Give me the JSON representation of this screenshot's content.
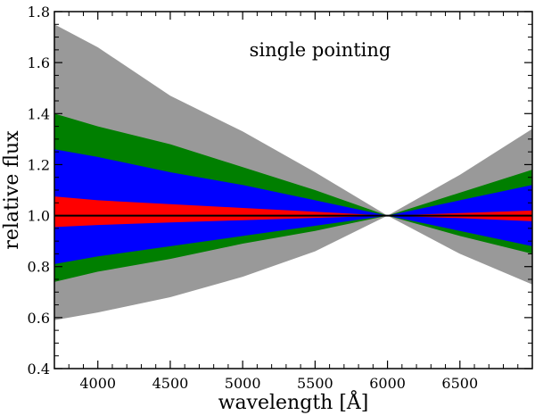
{
  "chart_data": {
    "type": "area",
    "title": "",
    "annotation": "single pointing",
    "xlabel": "wavelength [Å]",
    "ylabel": "relative flux",
    "xlim": [
      3700,
      7000
    ],
    "ylim": [
      0.4,
      1.8
    ],
    "x_ticks": [
      {
        "value": 4000,
        "label": "4000"
      },
      {
        "value": 4500,
        "label": "4500"
      },
      {
        "value": 5000,
        "label": "5000"
      },
      {
        "value": 5500,
        "label": "5500"
      },
      {
        "value": 6000,
        "label": "6000"
      },
      {
        "value": 6500,
        "label": "6500"
      }
    ],
    "y_ticks": [
      {
        "value": 0.4,
        "label": "0.4"
      },
      {
        "value": 0.6,
        "label": "0.6"
      },
      {
        "value": 0.8,
        "label": "0.8"
      },
      {
        "value": 1.0,
        "label": "1.0"
      },
      {
        "value": 1.2,
        "label": "1.2"
      },
      {
        "value": 1.4,
        "label": "1.4"
      },
      {
        "value": 1.6,
        "label": "1.6"
      },
      {
        "value": 1.8,
        "label": "1.8"
      }
    ],
    "bands": [
      {
        "name": "gray",
        "color": "#999999",
        "x": [
          3700,
          4000,
          4500,
          5000,
          5500,
          6000,
          6500,
          7000
        ],
        "upper": [
          1.75,
          1.66,
          1.47,
          1.33,
          1.17,
          1.0,
          1.16,
          1.34
        ],
        "lower": [
          0.59,
          0.62,
          0.68,
          0.76,
          0.86,
          1.0,
          0.85,
          0.73
        ]
      },
      {
        "name": "green",
        "color": "#007f00",
        "x": [
          3700,
          4000,
          4500,
          5000,
          5500,
          6000,
          6500,
          7000
        ],
        "upper": [
          1.4,
          1.35,
          1.28,
          1.19,
          1.1,
          1.0,
          1.09,
          1.18
        ],
        "lower": [
          0.74,
          0.78,
          0.83,
          0.89,
          0.94,
          1.0,
          0.92,
          0.85
        ]
      },
      {
        "name": "blue",
        "color": "#0000ff",
        "x": [
          3700,
          4000,
          4500,
          5000,
          5500,
          6000,
          6500,
          7000
        ],
        "upper": [
          1.26,
          1.23,
          1.17,
          1.12,
          1.06,
          1.0,
          1.06,
          1.12
        ],
        "lower": [
          0.81,
          0.84,
          0.88,
          0.92,
          0.96,
          1.0,
          0.94,
          0.88
        ]
      },
      {
        "name": "red",
        "color": "#ff0000",
        "x": [
          3700,
          4000,
          4500,
          5000,
          5500,
          6000,
          6500,
          7000
        ],
        "upper": [
          1.075,
          1.06,
          1.045,
          1.03,
          1.015,
          1.0,
          1.01,
          1.02
        ],
        "lower": [
          0.955,
          0.963,
          0.973,
          0.982,
          0.991,
          1.0,
          0.99,
          0.978
        ]
      }
    ],
    "reference_line": {
      "y": 1.0,
      "color": "#000000"
    }
  }
}
